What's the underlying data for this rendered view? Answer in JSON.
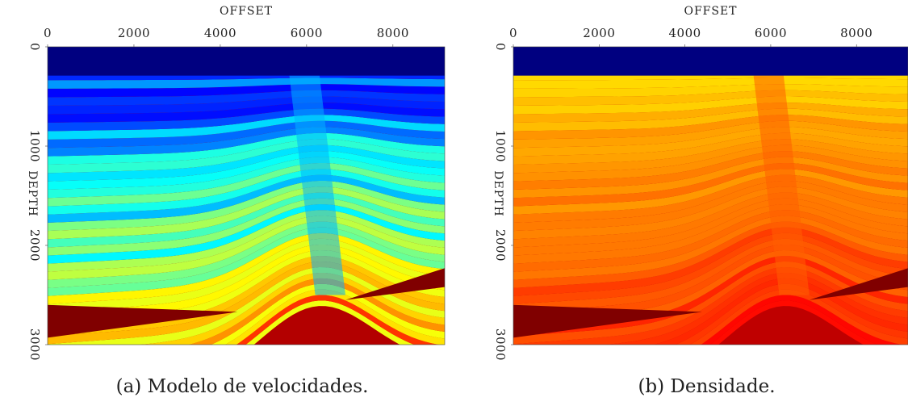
{
  "chart_data": [
    {
      "type": "image",
      "xlabel": "OFFSET",
      "ylabel": "DEPTH",
      "caption": "(a) Modelo de velocidades.",
      "colormap": "jet",
      "xlim": [
        0,
        9200
      ],
      "ylim": [
        0,
        3000
      ],
      "invert_y": true,
      "xticks": [
        0,
        2000,
        4000,
        6000,
        8000
      ],
      "yticks": [
        0,
        1000,
        2000,
        3000
      ]
    },
    {
      "type": "image",
      "xlabel": "OFFSET",
      "ylabel": "DEPTH",
      "caption": "(b) Densidade.",
      "colormap": "hot",
      "xlim": [
        0,
        9200
      ],
      "ylim": [
        0,
        3000
      ],
      "invert_y": true,
      "xticks": [
        0,
        2000,
        4000,
        6000,
        8000
      ],
      "yticks": [
        0,
        1000,
        2000,
        3000
      ]
    }
  ]
}
